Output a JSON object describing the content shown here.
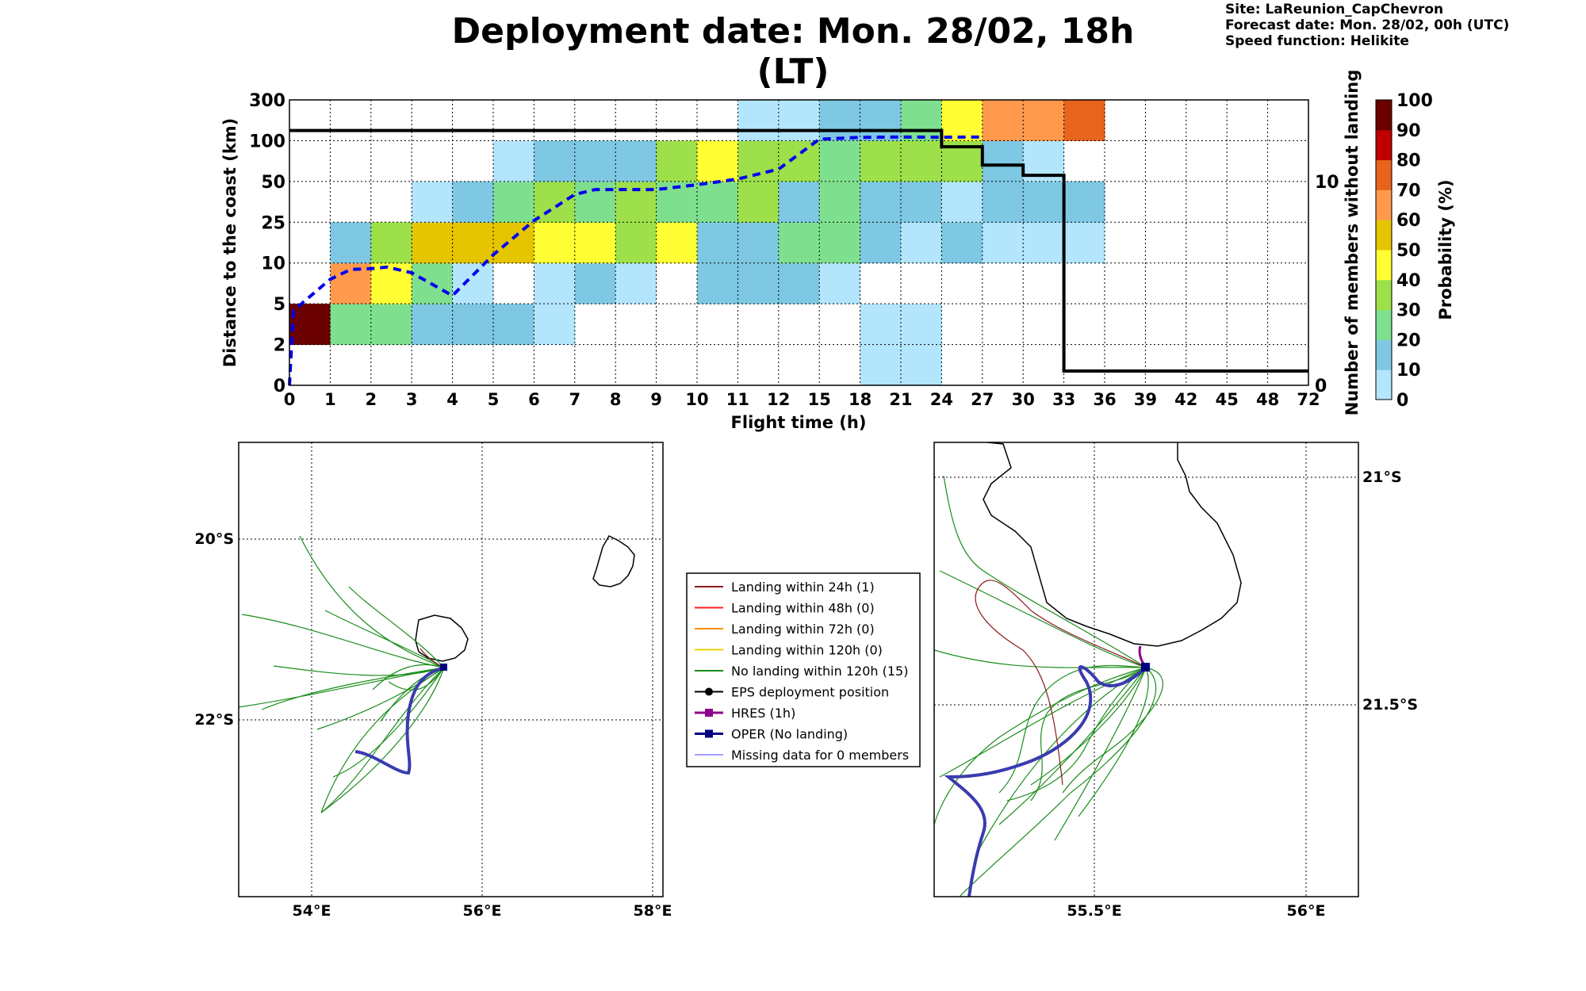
{
  "title": "Deployment date: Mon. 28/02, 18h (LT)",
  "info": {
    "site": "Site: LaReunion_CapChevron",
    "forecast": "Forecast date: Mon. 28/02, 00h (UTC)",
    "speed": "Speed function: Helikite"
  },
  "chart_data": [
    {
      "type": "heatmap",
      "xlabel": "Flight time (h)",
      "ylabel": "Distance to the coast (km)",
      "y2label": "Number of members without landing",
      "x_ticks": [
        "0",
        "1",
        "2",
        "3",
        "4",
        "5",
        "6",
        "7",
        "8",
        "9",
        "10",
        "11",
        "12",
        "15",
        "18",
        "21",
        "24",
        "27",
        "30",
        "33",
        "36",
        "39",
        "42",
        "45",
        "48",
        "72"
      ],
      "y_ticks": [
        "0",
        "2",
        "5",
        "10",
        "25",
        "50",
        "100",
        "300"
      ],
      "y2_ticks": [
        "0",
        "10"
      ],
      "y2_range": [
        0,
        14
      ],
      "grid": true,
      "colorbar": {
        "label": "Probability (%)",
        "ticks": [
          "0",
          "10",
          "20",
          "30",
          "40",
          "50",
          "60",
          "70",
          "80",
          "90",
          "100"
        ],
        "colors": [
          "#b3e5fc",
          "#7ec8e3",
          "#7ee08e",
          "#9de04a",
          "#ffff33",
          "#e5c400",
          "#ff9a4d",
          "#e8641e",
          "#c00000",
          "#6b0000"
        ]
      },
      "cells_note": "rows: y-bin index 0 = 0-2 km ... 6 = 100-300 km; value = colorbar class 0-9",
      "cells": [
        {
          "x": 0,
          "y": 1,
          "c": 9
        },
        {
          "x": 1,
          "y": 1,
          "c": 2
        },
        {
          "x": 2,
          "y": 1,
          "c": 2
        },
        {
          "x": 3,
          "y": 1,
          "c": 1
        },
        {
          "x": 4,
          "y": 1,
          "c": 1
        },
        {
          "x": 5,
          "y": 1,
          "c": 1
        },
        {
          "x": 6,
          "y": 1,
          "c": 0
        },
        {
          "x": 14,
          "y": 0,
          "c": 0
        },
        {
          "x": 15,
          "y": 0,
          "c": 0
        },
        {
          "x": 14,
          "y": 1,
          "c": 0
        },
        {
          "x": 15,
          "y": 1,
          "c": 0
        },
        {
          "x": 1,
          "y": 2,
          "c": 6
        },
        {
          "x": 2,
          "y": 2,
          "c": 4
        },
        {
          "x": 3,
          "y": 2,
          "c": 2
        },
        {
          "x": 4,
          "y": 2,
          "c": 0
        },
        {
          "x": 6,
          "y": 2,
          "c": 0
        },
        {
          "x": 7,
          "y": 2,
          "c": 1
        },
        {
          "x": 8,
          "y": 2,
          "c": 0
        },
        {
          "x": 10,
          "y": 2,
          "c": 1
        },
        {
          "x": 11,
          "y": 2,
          "c": 1
        },
        {
          "x": 12,
          "y": 2,
          "c": 1
        },
        {
          "x": 13,
          "y": 2,
          "c": 0
        },
        {
          "x": 1,
          "y": 3,
          "c": 1
        },
        {
          "x": 2,
          "y": 3,
          "c": 3
        },
        {
          "x": 3,
          "y": 3,
          "c": 5
        },
        {
          "x": 4,
          "y": 3,
          "c": 5
        },
        {
          "x": 5,
          "y": 3,
          "c": 5
        },
        {
          "x": 6,
          "y": 3,
          "c": 4
        },
        {
          "x": 7,
          "y": 3,
          "c": 4
        },
        {
          "x": 8,
          "y": 3,
          "c": 3
        },
        {
          "x": 9,
          "y": 3,
          "c": 4
        },
        {
          "x": 10,
          "y": 3,
          "c": 1
        },
        {
          "x": 11,
          "y": 3,
          "c": 1
        },
        {
          "x": 12,
          "y": 3,
          "c": 2
        },
        {
          "x": 13,
          "y": 3,
          "c": 2
        },
        {
          "x": 14,
          "y": 3,
          "c": 1
        },
        {
          "x": 15,
          "y": 3,
          "c": 0
        },
        {
          "x": 16,
          "y": 3,
          "c": 1
        },
        {
          "x": 17,
          "y": 3,
          "c": 0
        },
        {
          "x": 18,
          "y": 3,
          "c": 0
        },
        {
          "x": 19,
          "y": 3,
          "c": 0
        },
        {
          "x": 3,
          "y": 4,
          "c": 0
        },
        {
          "x": 4,
          "y": 4,
          "c": 1
        },
        {
          "x": 5,
          "y": 4,
          "c": 2
        },
        {
          "x": 6,
          "y": 4,
          "c": 3
        },
        {
          "x": 7,
          "y": 4,
          "c": 2
        },
        {
          "x": 8,
          "y": 4,
          "c": 3
        },
        {
          "x": 9,
          "y": 4,
          "c": 2
        },
        {
          "x": 10,
          "y": 4,
          "c": 2
        },
        {
          "x": 11,
          "y": 4,
          "c": 3
        },
        {
          "x": 12,
          "y": 4,
          "c": 1
        },
        {
          "x": 13,
          "y": 4,
          "c": 2
        },
        {
          "x": 14,
          "y": 4,
          "c": 1
        },
        {
          "x": 15,
          "y": 4,
          "c": 1
        },
        {
          "x": 16,
          "y": 4,
          "c": 0
        },
        {
          "x": 17,
          "y": 4,
          "c": 1
        },
        {
          "x": 18,
          "y": 4,
          "c": 1
        },
        {
          "x": 19,
          "y": 4,
          "c": 1
        },
        {
          "x": 5,
          "y": 5,
          "c": 0
        },
        {
          "x": 6,
          "y": 5,
          "c": 1
        },
        {
          "x": 7,
          "y": 5,
          "c": 1
        },
        {
          "x": 8,
          "y": 5,
          "c": 1
        },
        {
          "x": 9,
          "y": 5,
          "c": 3
        },
        {
          "x": 10,
          "y": 5,
          "c": 4
        },
        {
          "x": 11,
          "y": 5,
          "c": 3
        },
        {
          "x": 12,
          "y": 5,
          "c": 3
        },
        {
          "x": 13,
          "y": 5,
          "c": 2
        },
        {
          "x": 14,
          "y": 5,
          "c": 3
        },
        {
          "x": 15,
          "y": 5,
          "c": 3
        },
        {
          "x": 16,
          "y": 5,
          "c": 3
        },
        {
          "x": 17,
          "y": 5,
          "c": 1
        },
        {
          "x": 18,
          "y": 5,
          "c": 0
        },
        {
          "x": 11,
          "y": 6,
          "c": 0
        },
        {
          "x": 12,
          "y": 6,
          "c": 0
        },
        {
          "x": 13,
          "y": 6,
          "c": 1
        },
        {
          "x": 14,
          "y": 6,
          "c": 1
        },
        {
          "x": 15,
          "y": 6,
          "c": 2
        },
        {
          "x": 16,
          "y": 6,
          "c": 4
        },
        {
          "x": 17,
          "y": 6,
          "c": 6
        },
        {
          "x": 18,
          "y": 6,
          "c": 6
        },
        {
          "x": 19,
          "y": 6,
          "c": 7
        }
      ],
      "series": [
        {
          "style": "dashed-blue",
          "x": [
            "0",
            "0.1",
            "1",
            "1.5",
            "2",
            "2.4",
            "3",
            "4",
            "5",
            "6",
            "7",
            "7.5",
            "8",
            "9",
            "10",
            "11",
            "12",
            "15",
            "18",
            "21",
            "24",
            "27"
          ],
          "y_km": [
            0,
            4.5,
            8,
            9.2,
            9.3,
            9.5,
            8.8,
            6,
            13,
            26,
            42,
            45,
            45,
            45,
            48,
            53,
            65,
            107,
            116,
            118,
            117,
            118
          ]
        },
        {
          "style": "solid-black",
          "x": [
            "0",
            "21",
            "24",
            "27",
            "30",
            "33",
            "72"
          ],
          "y_members": [
            12.5,
            12.5,
            11.7,
            10.8,
            10.3,
            0.7,
            0.7
          ]
        }
      ]
    }
  ],
  "map_left": {
    "lon_ticks": [
      "54°E",
      "56°E",
      "58°E"
    ],
    "lat_ticks": [
      "20°S",
      "22°S"
    ]
  },
  "map_right": {
    "lon_ticks": [
      "55.5°E",
      "56°E"
    ],
    "lat_ticks": [
      "21°S",
      "21.5°S"
    ]
  },
  "legend": [
    {
      "label": "Landing within 24h (1)",
      "color": "#8b1a1a",
      "marker": "none",
      "width": 2
    },
    {
      "label": "Landing within 48h (0)",
      "color": "#ff2020",
      "marker": "none",
      "width": 2
    },
    {
      "label": "Landing within 72h (0)",
      "color": "#ff8c00",
      "marker": "none",
      "width": 2
    },
    {
      "label": "Landing within 120h (0)",
      "color": "#f0d000",
      "marker": "none",
      "width": 2
    },
    {
      "label": "No landing within 120h (15)",
      "color": "#1a8c1a",
      "marker": "none",
      "width": 2
    },
    {
      "label": "EPS deployment position",
      "color": "#000000",
      "marker": "circle",
      "width": 2
    },
    {
      "label": "HRES (1h)",
      "color": "#8b008b",
      "marker": "square",
      "width": 3
    },
    {
      "label": "OPER (No landing)",
      "color": "#000080",
      "marker": "square",
      "width": 3
    },
    {
      "label": "Missing data for 0 members",
      "color": "#4040ff",
      "marker": "none",
      "width": 1
    }
  ]
}
